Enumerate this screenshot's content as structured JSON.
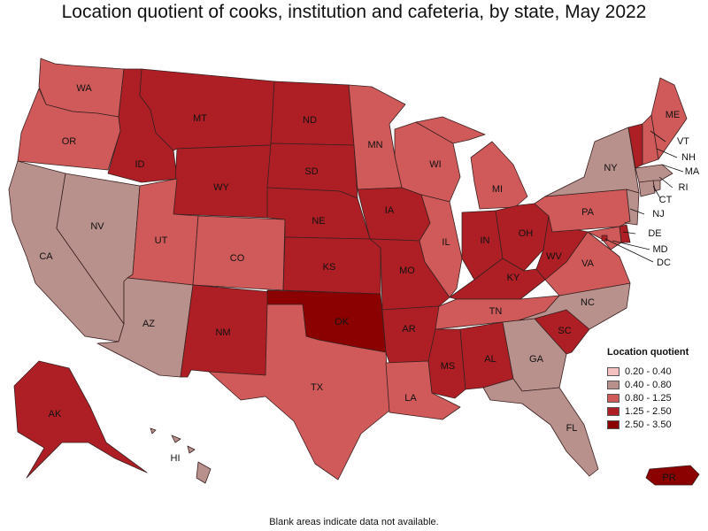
{
  "title": "Location quotient of cooks, institution and cafeteria, by state, May 2022",
  "footnote": "Blank areas indicate data not available.",
  "legend": {
    "title": "Location quotient",
    "items": [
      {
        "label": "0.20 - 0.40",
        "color": "#f5c0c0"
      },
      {
        "label": "0.40 - 0.80",
        "color": "#b8908c"
      },
      {
        "label": "0.80 - 1.25",
        "color": "#d05a5a"
      },
      {
        "label": "1.25 - 2.50",
        "color": "#ad1f24"
      },
      {
        "label": "2.50 - 3.50",
        "color": "#8b0000"
      }
    ]
  },
  "chart_data": {
    "type": "choropleth",
    "states": [
      {
        "abbr": "WA",
        "bin": 2
      },
      {
        "abbr": "OR",
        "bin": 2
      },
      {
        "abbr": "CA",
        "bin": 1
      },
      {
        "abbr": "NV",
        "bin": 1
      },
      {
        "abbr": "ID",
        "bin": 3
      },
      {
        "abbr": "MT",
        "bin": 3
      },
      {
        "abbr": "WY",
        "bin": 3
      },
      {
        "abbr": "UT",
        "bin": 2
      },
      {
        "abbr": "AZ",
        "bin": 1
      },
      {
        "abbr": "CO",
        "bin": 2
      },
      {
        "abbr": "NM",
        "bin": 3
      },
      {
        "abbr": "ND",
        "bin": 3
      },
      {
        "abbr": "SD",
        "bin": 3
      },
      {
        "abbr": "NE",
        "bin": 3
      },
      {
        "abbr": "KS",
        "bin": 3
      },
      {
        "abbr": "OK",
        "bin": 4
      },
      {
        "abbr": "TX",
        "bin": 2
      },
      {
        "abbr": "MN",
        "bin": 2
      },
      {
        "abbr": "IA",
        "bin": 3
      },
      {
        "abbr": "MO",
        "bin": 3
      },
      {
        "abbr": "AR",
        "bin": 3
      },
      {
        "abbr": "LA",
        "bin": 2
      },
      {
        "abbr": "WI",
        "bin": 2
      },
      {
        "abbr": "IL",
        "bin": 2
      },
      {
        "abbr": "MI",
        "bin": 2
      },
      {
        "abbr": "IN",
        "bin": 3
      },
      {
        "abbr": "OH",
        "bin": 3
      },
      {
        "abbr": "KY",
        "bin": 3
      },
      {
        "abbr": "TN",
        "bin": 2
      },
      {
        "abbr": "MS",
        "bin": 3
      },
      {
        "abbr": "AL",
        "bin": 3
      },
      {
        "abbr": "GA",
        "bin": 1
      },
      {
        "abbr": "FL",
        "bin": 1
      },
      {
        "abbr": "SC",
        "bin": 3
      },
      {
        "abbr": "NC",
        "bin": 1
      },
      {
        "abbr": "VA",
        "bin": 2
      },
      {
        "abbr": "WV",
        "bin": 3
      },
      {
        "abbr": "PA",
        "bin": 2
      },
      {
        "abbr": "NY",
        "bin": 1
      },
      {
        "abbr": "VT",
        "bin": 3
      },
      {
        "abbr": "NH",
        "bin": 2
      },
      {
        "abbr": "ME",
        "bin": 2
      },
      {
        "abbr": "MA",
        "bin": 1
      },
      {
        "abbr": "RI",
        "bin": 1
      },
      {
        "abbr": "CT",
        "bin": 1
      },
      {
        "abbr": "NJ",
        "bin": 1
      },
      {
        "abbr": "DE",
        "bin": 3
      },
      {
        "abbr": "MD",
        "bin": 2
      },
      {
        "abbr": "DC",
        "bin": 3
      },
      {
        "abbr": "AK",
        "bin": 3
      },
      {
        "abbr": "HI",
        "bin": 1
      },
      {
        "abbr": "PR",
        "bin": 4
      }
    ]
  }
}
